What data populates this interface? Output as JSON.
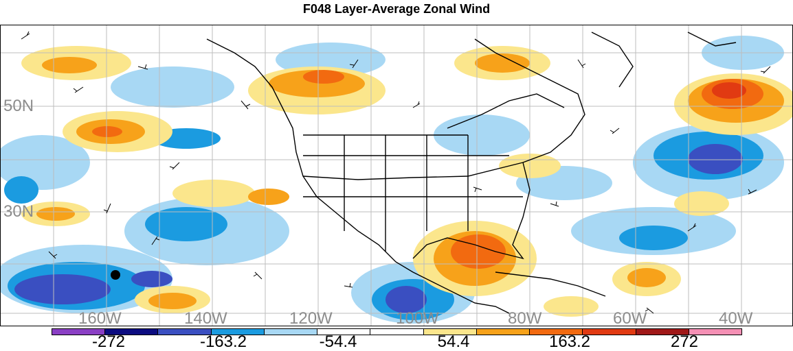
{
  "title": "F048 Layer-Average Zonal Wind",
  "map": {
    "latitude_labels": [
      "50N",
      "30N"
    ],
    "longitude_labels": [
      "160W",
      "140W",
      "120W",
      "100W",
      "80W",
      "60W",
      "40W"
    ],
    "marker": "black-dot"
  },
  "colorbar": {
    "colors": [
      "#8a3fc4",
      "#0c0c80",
      "#3a4fc1",
      "#1b9be0",
      "#a8d8f4",
      "#ffffff",
      "#ffffff",
      "#fbe68c",
      "#f7a21a",
      "#f26a10",
      "#e13a12",
      "#a01818",
      "#f590b5"
    ],
    "tick_labels": [
      "-272",
      "-163.2",
      "-54.4",
      "54.4",
      "163.2",
      "272"
    ]
  }
}
